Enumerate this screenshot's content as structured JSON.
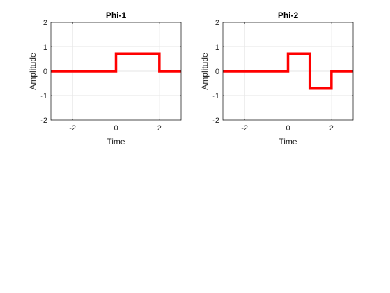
{
  "chart_data": [
    {
      "type": "line",
      "title": "Phi-1",
      "xlabel": "Time",
      "ylabel": "Amplitude",
      "xlim": [
        -3,
        3
      ],
      "ylim": [
        -2,
        2
      ],
      "xticks": [
        -2,
        0,
        2
      ],
      "yticks": [
        -2,
        -1,
        0,
        1,
        2
      ],
      "grid": true,
      "line_color": "#ff0000",
      "series": [
        {
          "x": [
            -3,
            0,
            0,
            2,
            2,
            3
          ],
          "y": [
            0,
            0,
            0.707,
            0.707,
            0,
            0
          ]
        }
      ]
    },
    {
      "type": "line",
      "title": "Phi-2",
      "xlabel": "Time",
      "ylabel": "Amplitude",
      "xlim": [
        -3,
        3
      ],
      "ylim": [
        -2,
        2
      ],
      "xticks": [
        -2,
        0,
        2
      ],
      "yticks": [
        -2,
        -1,
        0,
        1,
        2
      ],
      "grid": true,
      "line_color": "#ff0000",
      "series": [
        {
          "x": [
            -3,
            0,
            0,
            1,
            1,
            2,
            2,
            3
          ],
          "y": [
            0,
            0,
            0.707,
            0.707,
            -0.707,
            -0.707,
            0,
            0
          ]
        }
      ]
    }
  ]
}
